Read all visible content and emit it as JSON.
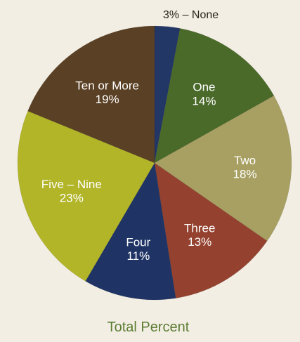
{
  "chart_data": {
    "type": "pie",
    "title": "",
    "caption": "Total Percent",
    "slices": [
      {
        "key": "none",
        "label": "None",
        "display": "3% – None",
        "value": 3,
        "color": "#233766",
        "label_color": "#2a2418",
        "label_position": "outside"
      },
      {
        "key": "one",
        "label": "One",
        "display_pct": "14%",
        "value": 14,
        "color": "#4a6a2a",
        "label_color": "#ffffff",
        "label_position": "inside"
      },
      {
        "key": "two",
        "label": "Two",
        "display_pct": "18%",
        "value": 18,
        "color": "#a8a062",
        "label_color": "#ffffff",
        "label_position": "inside"
      },
      {
        "key": "three",
        "label": "Three",
        "display_pct": "13%",
        "value": 13,
        "color": "#94422f",
        "label_color": "#ffffff",
        "label_position": "inside"
      },
      {
        "key": "four",
        "label": "Four",
        "display_pct": "11%",
        "value": 11,
        "color": "#1f3465",
        "label_color": "#ffffff",
        "label_position": "inside"
      },
      {
        "key": "five-nine",
        "label": "Five – Nine",
        "display_pct": "23%",
        "value": 23,
        "color": "#b2b528",
        "label_color": "#ffffff",
        "label_position": "inside"
      },
      {
        "key": "ten-or-more",
        "label": "Ten or More",
        "display_pct": "19%",
        "value": 19,
        "color": "#5a4024",
        "label_color": "#ffffff",
        "label_position": "inside"
      }
    ]
  }
}
